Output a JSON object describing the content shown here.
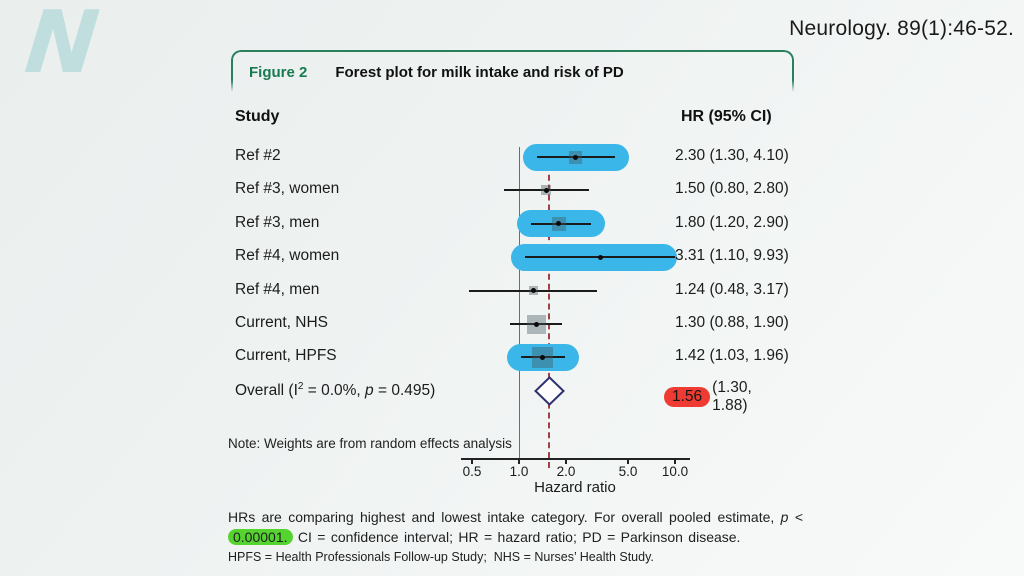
{
  "page": {
    "citation": "Neurology. 89(1):46-52.",
    "logo_glyph": "N"
  },
  "figure": {
    "label": "Figure 2",
    "title": "Forest plot for milk intake and risk of PD",
    "accent_green": "#187a50"
  },
  "columns": {
    "study_header": "Study",
    "hr_header": "HR (95% CI)"
  },
  "chart_data": {
    "type": "forest",
    "x_scale": "log",
    "xlabel": "Hazard ratio",
    "x_ticks": [
      0.5,
      1.0,
      2.0,
      5.0,
      10.0
    ],
    "x_tick_labels": [
      "0.5",
      "1.0",
      "2.0",
      "5.0",
      "10.0"
    ],
    "x_range": [
      0.42,
      12.5
    ],
    "ref_line": 1.0,
    "pooled_line": 1.56,
    "rows": [
      {
        "label": "Ref #2",
        "hr": 2.3,
        "lo": 1.3,
        "hi": 4.1,
        "text": "2.30 (1.30, 4.10)",
        "highlight": true,
        "weight_size": 13
      },
      {
        "label": "Ref #3, women",
        "hr": 1.5,
        "lo": 0.8,
        "hi": 2.8,
        "text": "1.50 (0.80, 2.80)",
        "highlight": false,
        "weight_size": 10
      },
      {
        "label": "Ref #3, men",
        "hr": 1.8,
        "lo": 1.2,
        "hi": 2.9,
        "text": "1.80 (1.20, 2.90)",
        "highlight": true,
        "weight_size": 14
      },
      {
        "label": "Ref #4, women",
        "hr": 3.31,
        "lo": 1.1,
        "hi": 9.93,
        "text": "3.31 (1.10, 9.93)",
        "highlight": true,
        "weight_size": 0
      },
      {
        "label": "Ref #4, men",
        "hr": 1.24,
        "lo": 0.48,
        "hi": 3.17,
        "text": "1.24 (0.48, 3.17)",
        "highlight": false,
        "weight_size": 9
      },
      {
        "label": "Current, NHS",
        "hr": 1.3,
        "lo": 0.88,
        "hi": 1.9,
        "text": "1.30 (0.88, 1.90)",
        "highlight": false,
        "weight_size": 19
      },
      {
        "label": "Current, HPFS",
        "hr": 1.42,
        "lo": 1.03,
        "hi": 1.96,
        "text": "1.42 (1.03, 1.96)",
        "highlight": true,
        "weight_size": 21
      }
    ],
    "overall": {
      "label_prefix": "Overall (I",
      "label_sup": "2",
      "label_mid": " = 0.0%, ",
      "label_p": "p",
      "label_suffix": " = 0.495)",
      "hr": 1.56,
      "lo": 1.3,
      "hi": 1.88,
      "hr_value_text": "1.56",
      "ci_text": "(1.30, 1.88)"
    },
    "note": "Note: Weights are from random effects analysis",
    "legend_position": "none",
    "grid": false,
    "colors": {
      "highlight_blue": "#3ab6e8",
      "overall_red": "#ee3b33",
      "diamond_navy": "#2e3170",
      "pooled_dashed_red": "#a04048"
    }
  },
  "caption": {
    "line1_a": "HRs are comparing highest and lowest intake category. For overall pooled estimate, ",
    "line1_p": "p",
    "line1_b": " <",
    "line2_highlight": "0.00001.",
    "line2_rest": " CI = confidence interval; HR = hazard ratio; PD = Parkinson disease.",
    "line3": "HPFS = Health Professionals Follow-up Study;  NHS = Nurses’ Health Study.",
    "highlight_green": "#55d32f"
  }
}
